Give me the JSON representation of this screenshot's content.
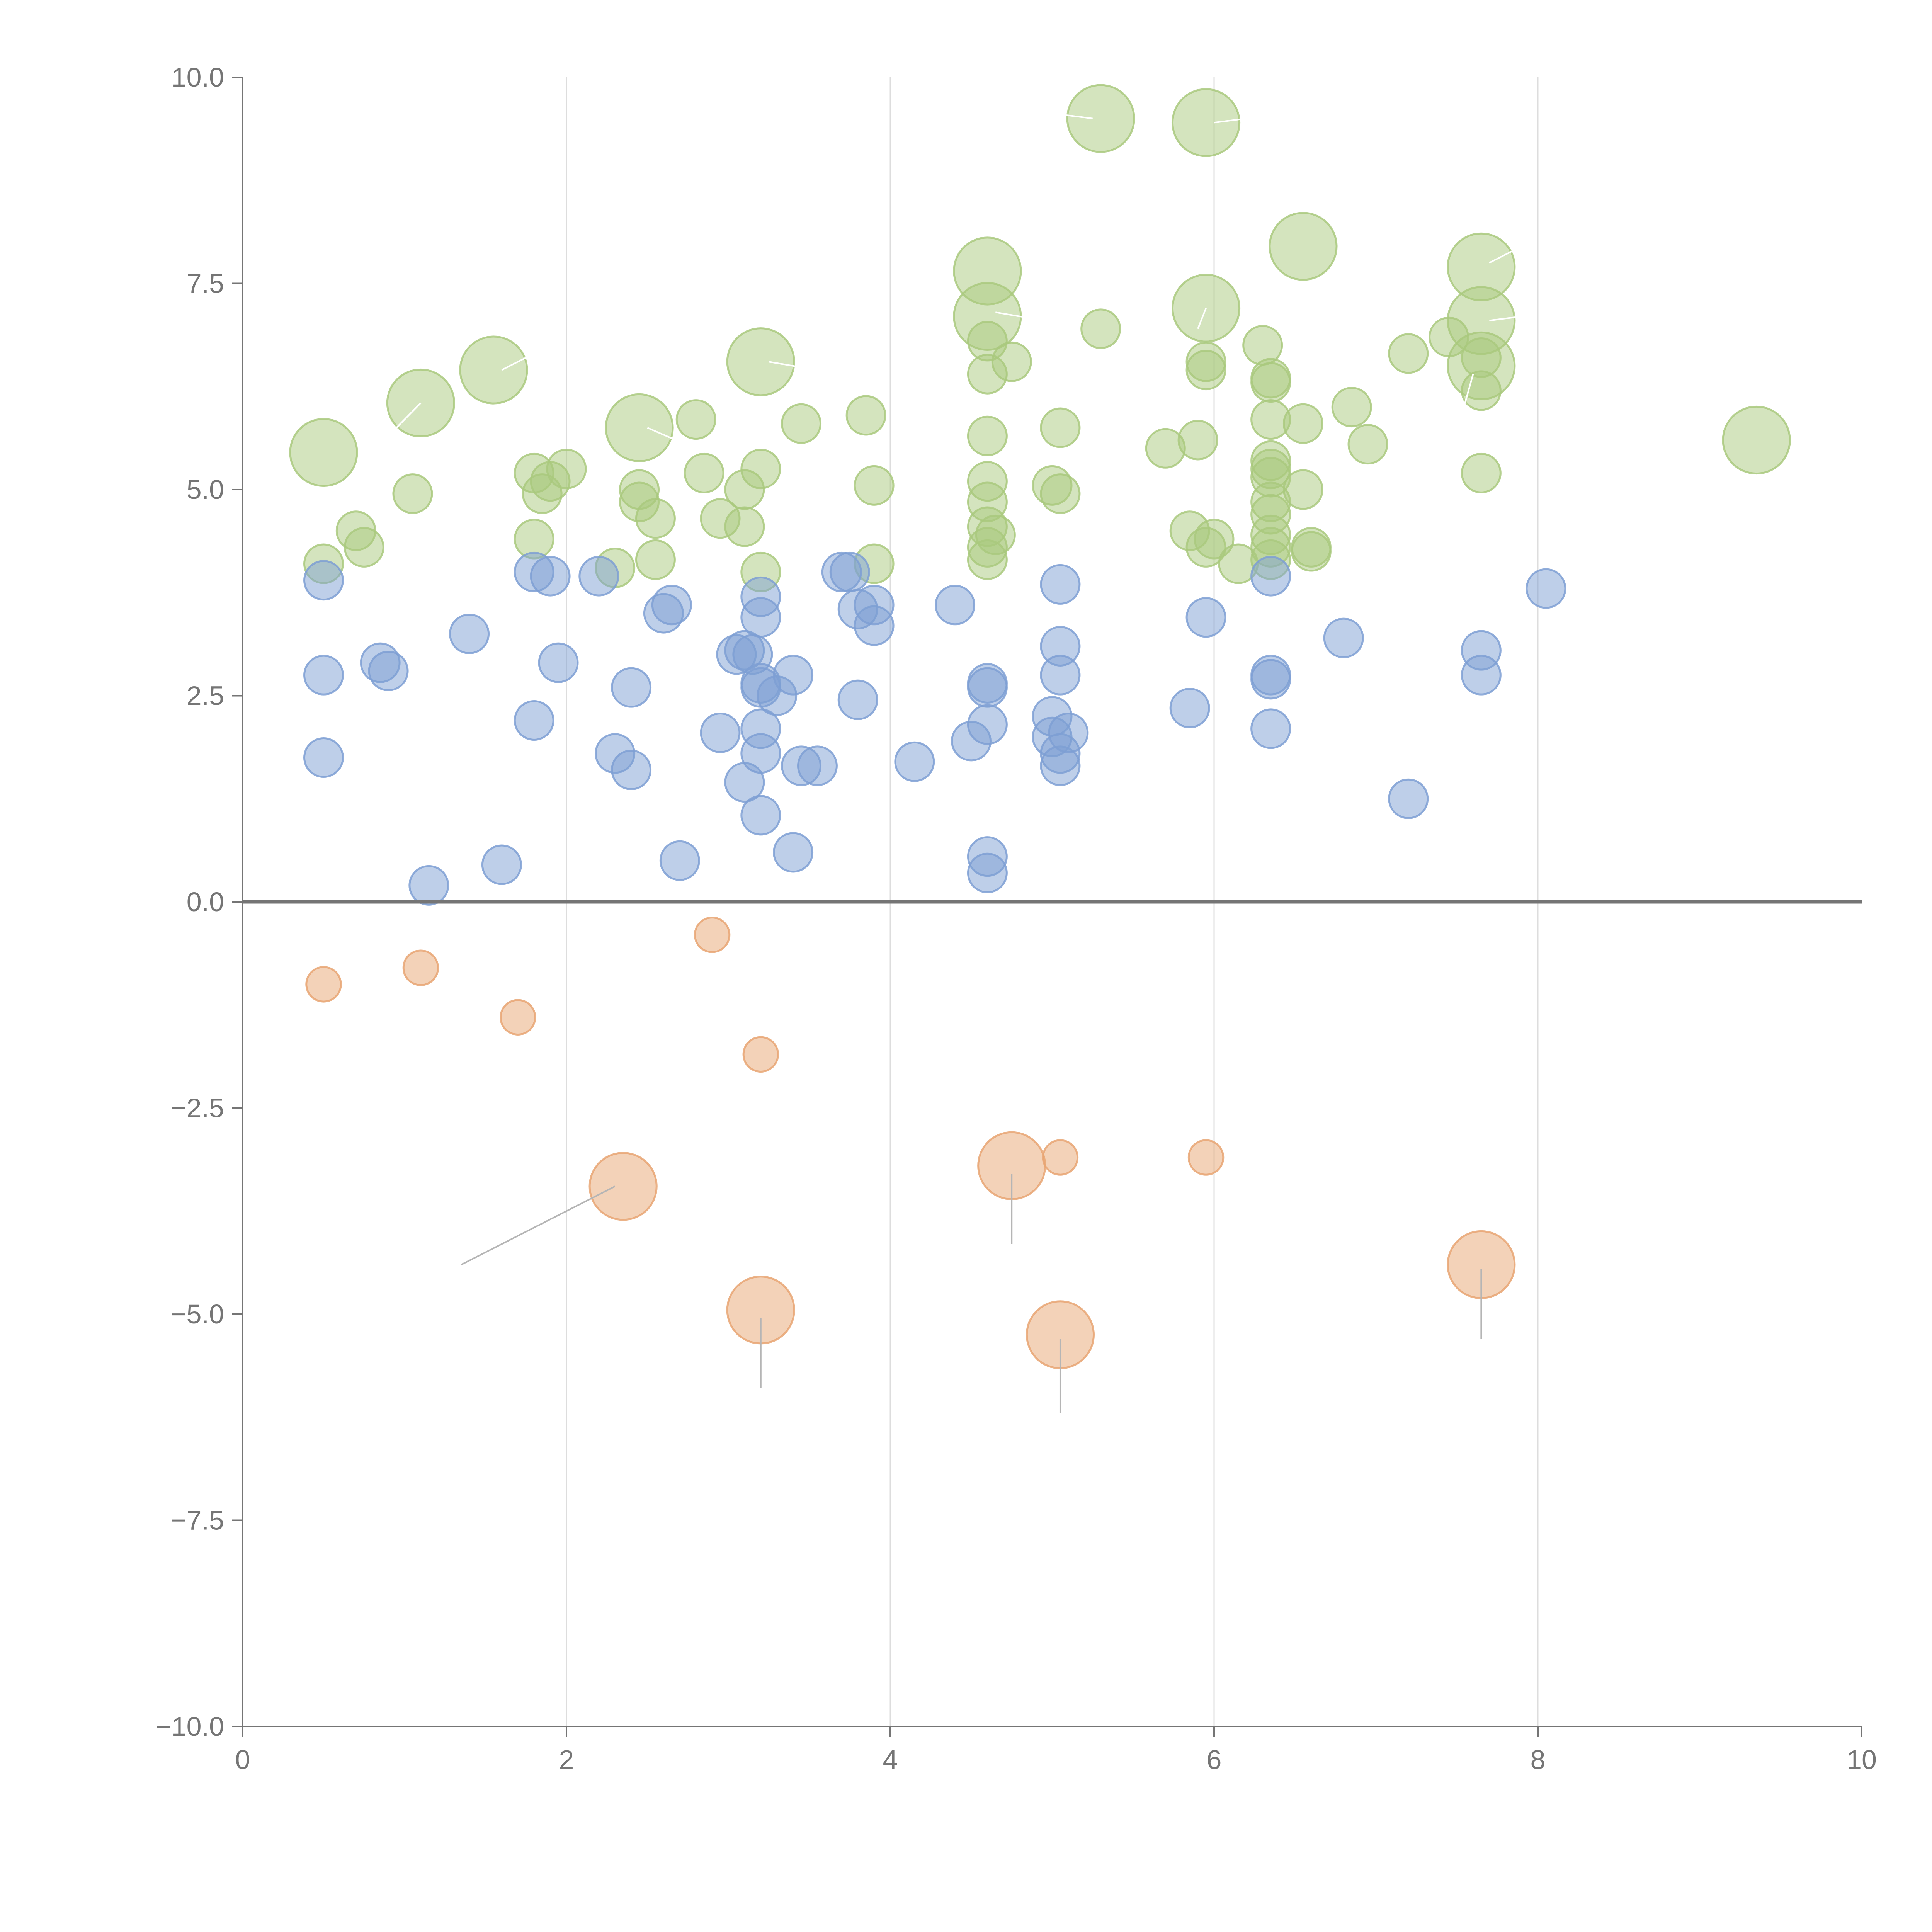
{
  "chart_data": {
    "type": "scatter",
    "title": "",
    "xlabel": "",
    "ylabel": "",
    "xlim": [
      0,
      10
    ],
    "ylim": [
      -10,
      10
    ],
    "grid": "vertical",
    "x_ticks": [
      0,
      2,
      4,
      6,
      8,
      10
    ],
    "x_tick_labels": [
      "0",
      "2",
      "4",
      "6",
      "8",
      "10"
    ],
    "y_ticks": [
      -10,
      -7.5,
      -5,
      -2.5,
      0,
      2.5,
      5,
      7.5,
      10
    ],
    "y_tick_labels": [
      "−10.0",
      "−7.5",
      "−5.0",
      "−2.5",
      "0.0",
      "2.5",
      "5.0",
      "7.5",
      "10.0"
    ],
    "bubble_size_unit": "relative",
    "series": [
      {
        "name": "green",
        "color": "#a9c97e",
        "points": [
          [
            0.5,
            5.45,
            3
          ],
          [
            1.1,
            6.05,
            3
          ],
          [
            1.55,
            6.45,
            3
          ],
          [
            2.45,
            5.75,
            3
          ],
          [
            3.2,
            6.55,
            3
          ],
          [
            4.6,
            7.65,
            3
          ],
          [
            4.6,
            7.1,
            3
          ],
          [
            5.3,
            9.5,
            3
          ],
          [
            5.95,
            9.45,
            3
          ],
          [
            5.95,
            7.2,
            3
          ],
          [
            6.55,
            7.95,
            3
          ],
          [
            7.65,
            7.7,
            3
          ],
          [
            7.65,
            7.05,
            3
          ],
          [
            7.65,
            6.5,
            3
          ],
          [
            9.35,
            5.6,
            3
          ],
          [
            0.5,
            4.1,
            1
          ],
          [
            0.7,
            4.5,
            1
          ],
          [
            0.75,
            4.3,
            1
          ],
          [
            1.05,
            4.95,
            1
          ],
          [
            1.8,
            5.2,
            1
          ],
          [
            1.85,
            4.95,
            1
          ],
          [
            1.9,
            5.1,
            1
          ],
          [
            1.8,
            4.4,
            1
          ],
          [
            2.0,
            5.25,
            1
          ],
          [
            2.3,
            4.05,
            1
          ],
          [
            2.45,
            5.0,
            1
          ],
          [
            2.45,
            4.85,
            1
          ],
          [
            2.55,
            4.65,
            1
          ],
          [
            2.55,
            4.15,
            1
          ],
          [
            2.8,
            5.85,
            1
          ],
          [
            2.85,
            5.2,
            1
          ],
          [
            2.95,
            4.65,
            1
          ],
          [
            3.1,
            5.0,
            1
          ],
          [
            3.1,
            4.55,
            1
          ],
          [
            3.2,
            5.25,
            1
          ],
          [
            3.2,
            4.0,
            1
          ],
          [
            3.45,
            5.8,
            1
          ],
          [
            3.85,
            5.9,
            1
          ],
          [
            3.9,
            5.05,
            1
          ],
          [
            3.9,
            4.1,
            1
          ],
          [
            4.6,
            6.8,
            1
          ],
          [
            4.6,
            6.4,
            1
          ],
          [
            4.6,
            5.65,
            1
          ],
          [
            4.6,
            5.1,
            1
          ],
          [
            4.6,
            4.85,
            1
          ],
          [
            4.6,
            4.55,
            1
          ],
          [
            4.6,
            4.3,
            1
          ],
          [
            4.6,
            4.15,
            1
          ],
          [
            4.65,
            4.45,
            1
          ],
          [
            4.75,
            6.55,
            1
          ],
          [
            5.0,
            5.05,
            1
          ],
          [
            5.05,
            5.75,
            1
          ],
          [
            5.05,
            4.95,
            1
          ],
          [
            5.3,
            6.95,
            1
          ],
          [
            5.7,
            5.5,
            1
          ],
          [
            5.85,
            4.5,
            1
          ],
          [
            5.9,
            5.6,
            1
          ],
          [
            5.95,
            6.55,
            1
          ],
          [
            5.95,
            6.45,
            1
          ],
          [
            5.95,
            4.3,
            1
          ],
          [
            6.0,
            4.4,
            1
          ],
          [
            6.15,
            4.1,
            1
          ],
          [
            6.3,
            6.75,
            1
          ],
          [
            6.35,
            6.35,
            1
          ],
          [
            6.35,
            6.3,
            1
          ],
          [
            6.35,
            5.85,
            1
          ],
          [
            6.35,
            5.35,
            1
          ],
          [
            6.35,
            5.25,
            1
          ],
          [
            6.35,
            5.15,
            1
          ],
          [
            6.35,
            4.85,
            1
          ],
          [
            6.35,
            4.7,
            1
          ],
          [
            6.35,
            4.45,
            1
          ],
          [
            6.35,
            4.3,
            1
          ],
          [
            6.35,
            4.15,
            1
          ],
          [
            6.55,
            5.0,
            1
          ],
          [
            6.55,
            5.8,
            1
          ],
          [
            6.6,
            4.3,
            1
          ],
          [
            6.6,
            4.25,
            1
          ],
          [
            6.85,
            6.0,
            1
          ],
          [
            6.95,
            5.55,
            1
          ],
          [
            7.2,
            6.65,
            1
          ],
          [
            7.45,
            6.85,
            1
          ],
          [
            7.65,
            6.6,
            1
          ],
          [
            7.65,
            6.2,
            1
          ],
          [
            7.65,
            5.2,
            1
          ]
        ]
      },
      {
        "name": "blue",
        "color": "#7e9fd3",
        "points": [
          [
            0.5,
            3.9,
            1
          ],
          [
            0.5,
            2.75,
            1
          ],
          [
            0.5,
            1.75,
            1
          ],
          [
            0.85,
            2.9,
            1
          ],
          [
            0.9,
            2.8,
            1
          ],
          [
            1.15,
            0.2,
            1
          ],
          [
            1.4,
            3.25,
            1
          ],
          [
            1.6,
            0.45,
            1
          ],
          [
            1.8,
            4.0,
            1
          ],
          [
            1.8,
            2.2,
            1
          ],
          [
            1.9,
            3.95,
            1
          ],
          [
            1.95,
            2.9,
            1
          ],
          [
            2.2,
            3.95,
            1
          ],
          [
            2.3,
            1.8,
            1
          ],
          [
            2.4,
            2.6,
            1
          ],
          [
            2.4,
            1.6,
            1
          ],
          [
            2.6,
            3.5,
            1
          ],
          [
            2.65,
            3.6,
            1
          ],
          [
            2.7,
            0.5,
            1
          ],
          [
            2.95,
            2.05,
            1
          ],
          [
            3.05,
            3.0,
            1
          ],
          [
            3.1,
            3.05,
            1
          ],
          [
            3.1,
            1.45,
            1
          ],
          [
            3.15,
            3.0,
            1
          ],
          [
            3.2,
            3.7,
            1
          ],
          [
            3.2,
            3.45,
            1
          ],
          [
            3.2,
            2.65,
            1
          ],
          [
            3.2,
            2.6,
            1
          ],
          [
            3.2,
            2.1,
            1
          ],
          [
            3.2,
            1.8,
            1
          ],
          [
            3.2,
            1.05,
            1
          ],
          [
            3.3,
            2.5,
            1
          ],
          [
            3.4,
            2.75,
            1
          ],
          [
            3.4,
            0.6,
            1
          ],
          [
            3.45,
            1.65,
            1
          ],
          [
            3.55,
            1.65,
            1
          ],
          [
            3.7,
            4.0,
            1
          ],
          [
            3.75,
            4.0,
            1
          ],
          [
            3.8,
            3.55,
            1
          ],
          [
            3.8,
            2.45,
            1
          ],
          [
            3.9,
            3.35,
            1
          ],
          [
            3.9,
            3.6,
            1
          ],
          [
            4.15,
            1.7,
            1
          ],
          [
            4.4,
            3.6,
            1
          ],
          [
            4.5,
            1.95,
            1
          ],
          [
            4.6,
            2.65,
            1
          ],
          [
            4.6,
            2.6,
            1
          ],
          [
            4.6,
            2.15,
            1
          ],
          [
            4.6,
            0.55,
            1
          ],
          [
            4.6,
            0.35,
            1
          ],
          [
            5.0,
            2.25,
            1
          ],
          [
            5.0,
            2.0,
            1
          ],
          [
            5.05,
            3.85,
            1
          ],
          [
            5.05,
            3.1,
            1
          ],
          [
            5.05,
            2.75,
            1
          ],
          [
            5.05,
            1.8,
            1
          ],
          [
            5.05,
            1.65,
            1
          ],
          [
            5.1,
            2.05,
            1
          ],
          [
            5.85,
            2.35,
            1
          ],
          [
            5.95,
            3.45,
            1
          ],
          [
            6.35,
            3.95,
            1
          ],
          [
            6.35,
            2.75,
            1
          ],
          [
            6.35,
            2.7,
            1
          ],
          [
            6.35,
            2.1,
            1
          ],
          [
            6.8,
            3.2,
            1
          ],
          [
            7.2,
            1.25,
            1
          ],
          [
            7.65,
            3.05,
            1
          ],
          [
            7.65,
            2.75,
            1
          ],
          [
            8.05,
            3.8,
            1
          ]
        ]
      },
      {
        "name": "orange",
        "color": "#e8a572",
        "points": [
          [
            0.5,
            -1.0,
            0.8
          ],
          [
            1.1,
            -0.8,
            0.8
          ],
          [
            1.7,
            -1.4,
            0.8
          ],
          [
            2.9,
            -0.4,
            0.8
          ],
          [
            3.2,
            -1.85,
            0.8
          ],
          [
            2.35,
            -3.45,
            3
          ],
          [
            4.75,
            -3.2,
            3
          ],
          [
            5.05,
            -3.1,
            0.8
          ],
          [
            5.95,
            -3.1,
            0.8
          ],
          [
            3.2,
            -4.95,
            3
          ],
          [
            5.05,
            -5.25,
            3
          ],
          [
            7.65,
            -4.4,
            3
          ]
        ]
      }
    ],
    "leader_lines": [
      {
        "from": [
          2.3,
          -3.45
        ],
        "to": [
          1.35,
          -4.4
        ],
        "color": "#b5b5b5"
      },
      {
        "from": [
          4.75,
          -3.3
        ],
        "to": [
          4.75,
          -4.15
        ],
        "color": "#b5b5b5"
      },
      {
        "from": [
          3.2,
          -5.05
        ],
        "to": [
          3.2,
          -5.9
        ],
        "color": "#b5b5b5"
      },
      {
        "from": [
          5.05,
          -5.3
        ],
        "to": [
          5.05,
          -6.2
        ],
        "color": "#b5b5b5"
      },
      {
        "from": [
          7.65,
          -4.45
        ],
        "to": [
          7.65,
          -5.3
        ],
        "color": "#b5b5b5"
      },
      {
        "from": [
          1.1,
          6.05
        ],
        "to": [
          0.95,
          5.75
        ],
        "color": "#ffffff"
      },
      {
        "from": [
          1.6,
          6.45
        ],
        "to": [
          1.8,
          6.65
        ],
        "color": "#ffffff"
      },
      {
        "from": [
          2.5,
          5.75
        ],
        "to": [
          2.85,
          5.45
        ],
        "color": "#ffffff"
      },
      {
        "from": [
          3.25,
          6.55
        ],
        "to": [
          3.55,
          6.45
        ],
        "color": "#ffffff"
      },
      {
        "from": [
          4.65,
          7.15
        ],
        "to": [
          4.95,
          7.05
        ],
        "color": "#ffffff"
      },
      {
        "from": [
          5.25,
          9.5
        ],
        "to": [
          5.05,
          9.55
        ],
        "color": "#ffffff"
      },
      {
        "from": [
          6.0,
          9.45
        ],
        "to": [
          6.2,
          9.5
        ],
        "color": "#ffffff"
      },
      {
        "from": [
          5.95,
          7.2
        ],
        "to": [
          5.9,
          6.95
        ],
        "color": "#ffffff"
      },
      {
        "from": [
          7.7,
          7.75
        ],
        "to": [
          7.85,
          7.9
        ],
        "color": "#ffffff"
      },
      {
        "from": [
          7.7,
          7.05
        ],
        "to": [
          7.9,
          7.1
        ],
        "color": "#ffffff"
      },
      {
        "from": [
          7.6,
          6.4
        ],
        "to": [
          7.55,
          6.05
        ],
        "color": "#ffffff"
      }
    ]
  }
}
